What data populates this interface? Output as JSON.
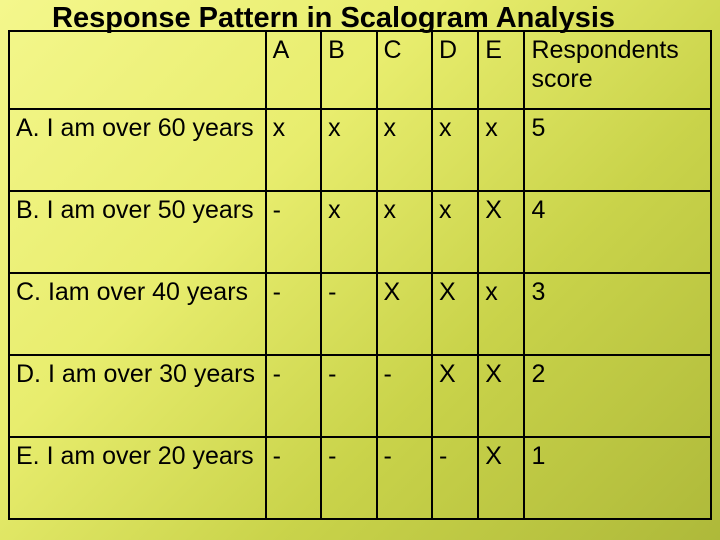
{
  "title": "Response Pattern in Scalogram Analysis",
  "table": {
    "columns": [
      "",
      "A",
      "B",
      "C",
      "D",
      "E",
      "Respondents score"
    ],
    "rows": [
      {
        "label": "A. I am over 60 years",
        "cells": [
          "x",
          "x",
          "x",
          "x",
          "x",
          "5"
        ]
      },
      {
        "label": "B. I am over 50 years",
        "cells": [
          "-",
          "x",
          "x",
          "x",
          "X",
          "4"
        ]
      },
      {
        "label": "C. Iam over 40 years",
        "cells": [
          "-",
          "-",
          "X",
          "X",
          "x",
          "3"
        ]
      },
      {
        "label": "D. I am over 30 years",
        "cells": [
          "-",
          "-",
          "-",
          "X",
          "X",
          "2"
        ]
      },
      {
        "label": "E. I am over 20 years",
        "cells": [
          "-",
          "-",
          "-",
          "-",
          "X",
          "1"
        ]
      }
    ]
  }
}
